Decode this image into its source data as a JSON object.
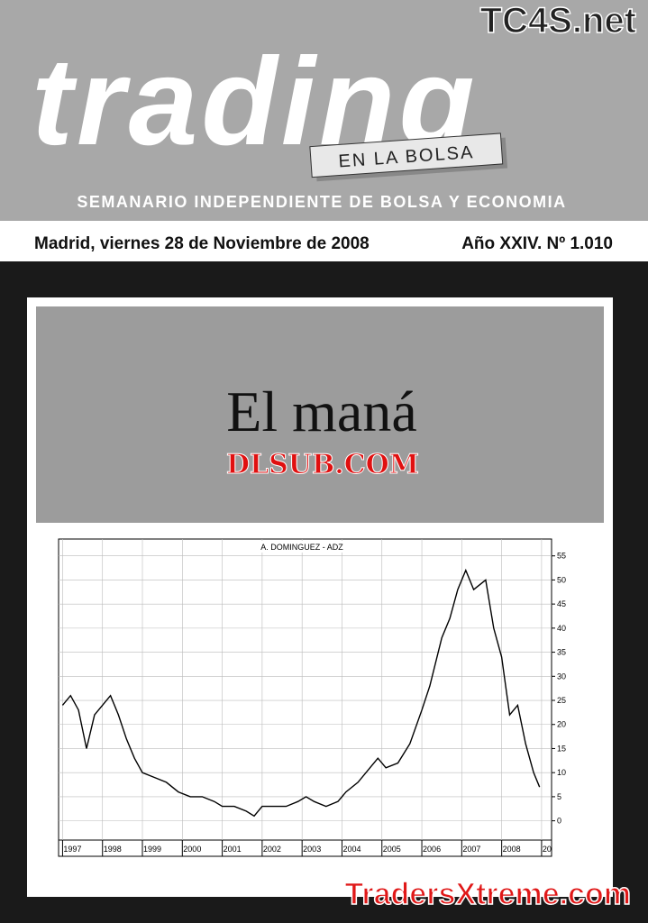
{
  "masthead": {
    "site": "TC4S.net",
    "title": "trading",
    "tagline": "EN LA BOLSA",
    "subtitle": "SEMANARIO INDEPENDIENTE DE BOLSA Y ECONOMIA"
  },
  "dateline": {
    "date": "Madrid, viernes 28 de Noviembre de 2008",
    "issue": "Año XXIV. Nº 1.010"
  },
  "headline": {
    "title": "El maná",
    "watermark": "DLSUB.COM"
  },
  "chart_data": {
    "type": "line",
    "title": "A. DOMINGUEZ - ADZ",
    "color": "#000000",
    "grid": true,
    "x": [
      1997.0,
      1997.2,
      1997.4,
      1997.6,
      1997.8,
      1998.0,
      1998.2,
      1998.4,
      1998.6,
      1998.8,
      1999.0,
      1999.3,
      1999.6,
      1999.9,
      2000.2,
      2000.5,
      2000.8,
      2001.0,
      2001.3,
      2001.6,
      2001.8,
      2002.0,
      2002.3,
      2002.6,
      2002.9,
      2003.1,
      2003.3,
      2003.6,
      2003.9,
      2004.1,
      2004.4,
      2004.7,
      2004.9,
      2005.1,
      2005.4,
      2005.7,
      2006.0,
      2006.2,
      2006.5,
      2006.7,
      2006.9,
      2007.1,
      2007.3,
      2007.6,
      2007.8,
      2008.0,
      2008.2,
      2008.4,
      2008.6,
      2008.8,
      2008.95
    ],
    "values": [
      24,
      26,
      23,
      15,
      22,
      24,
      26,
      22,
      17,
      13,
      10,
      9,
      8,
      6,
      5,
      5,
      4,
      3,
      3,
      2,
      1,
      3,
      3,
      3,
      4,
      5,
      4,
      3,
      4,
      6,
      8,
      11,
      13,
      11,
      12,
      16,
      23,
      28,
      38,
      42,
      48,
      52,
      48,
      50,
      40,
      34,
      22,
      24,
      16,
      10,
      7
    ],
    "xlim": [
      1996.9,
      2009.25
    ],
    "xticks": [
      1997,
      1998,
      1999,
      2000,
      2001,
      2002,
      2003,
      2004,
      2005,
      2006,
      2007,
      2008,
      {
        "value": 2009,
        "label": "20"
      }
    ],
    "ylim": [
      -4,
      58.5
    ],
    "yticks": [
      0,
      5,
      10,
      15,
      20,
      25,
      30,
      35,
      40,
      45,
      50,
      55
    ]
  },
  "footer": {
    "watermark": "TradersXtreme.com"
  }
}
